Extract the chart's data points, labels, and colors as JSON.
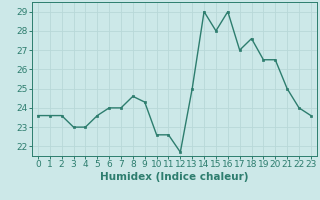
{
  "x": [
    0,
    1,
    2,
    3,
    4,
    5,
    6,
    7,
    8,
    9,
    10,
    11,
    12,
    13,
    14,
    15,
    16,
    17,
    18,
    19,
    20,
    21,
    22,
    23
  ],
  "y": [
    23.6,
    23.6,
    23.6,
    23.0,
    23.0,
    23.6,
    24.0,
    24.0,
    24.6,
    24.3,
    22.6,
    22.6,
    21.7,
    25.0,
    29.0,
    28.0,
    29.0,
    27.0,
    27.6,
    26.5,
    26.5,
    25.0,
    24.0,
    23.6
  ],
  "line_color": "#2d7d6e",
  "marker_color": "#2d7d6e",
  "bg_color": "#cce8e8",
  "grid_color": "#b8d8d8",
  "xlabel": "Humidex (Indice chaleur)",
  "ylim": [
    21.5,
    29.5
  ],
  "xlim": [
    -0.5,
    23.5
  ],
  "yticks": [
    22,
    23,
    24,
    25,
    26,
    27,
    28,
    29
  ],
  "xticks": [
    0,
    1,
    2,
    3,
    4,
    5,
    6,
    7,
    8,
    9,
    10,
    11,
    12,
    13,
    14,
    15,
    16,
    17,
    18,
    19,
    20,
    21,
    22,
    23
  ],
  "tick_label_fontsize": 6.5,
  "xlabel_fontsize": 7.5,
  "marker_size": 2.0,
  "line_width": 1.0
}
